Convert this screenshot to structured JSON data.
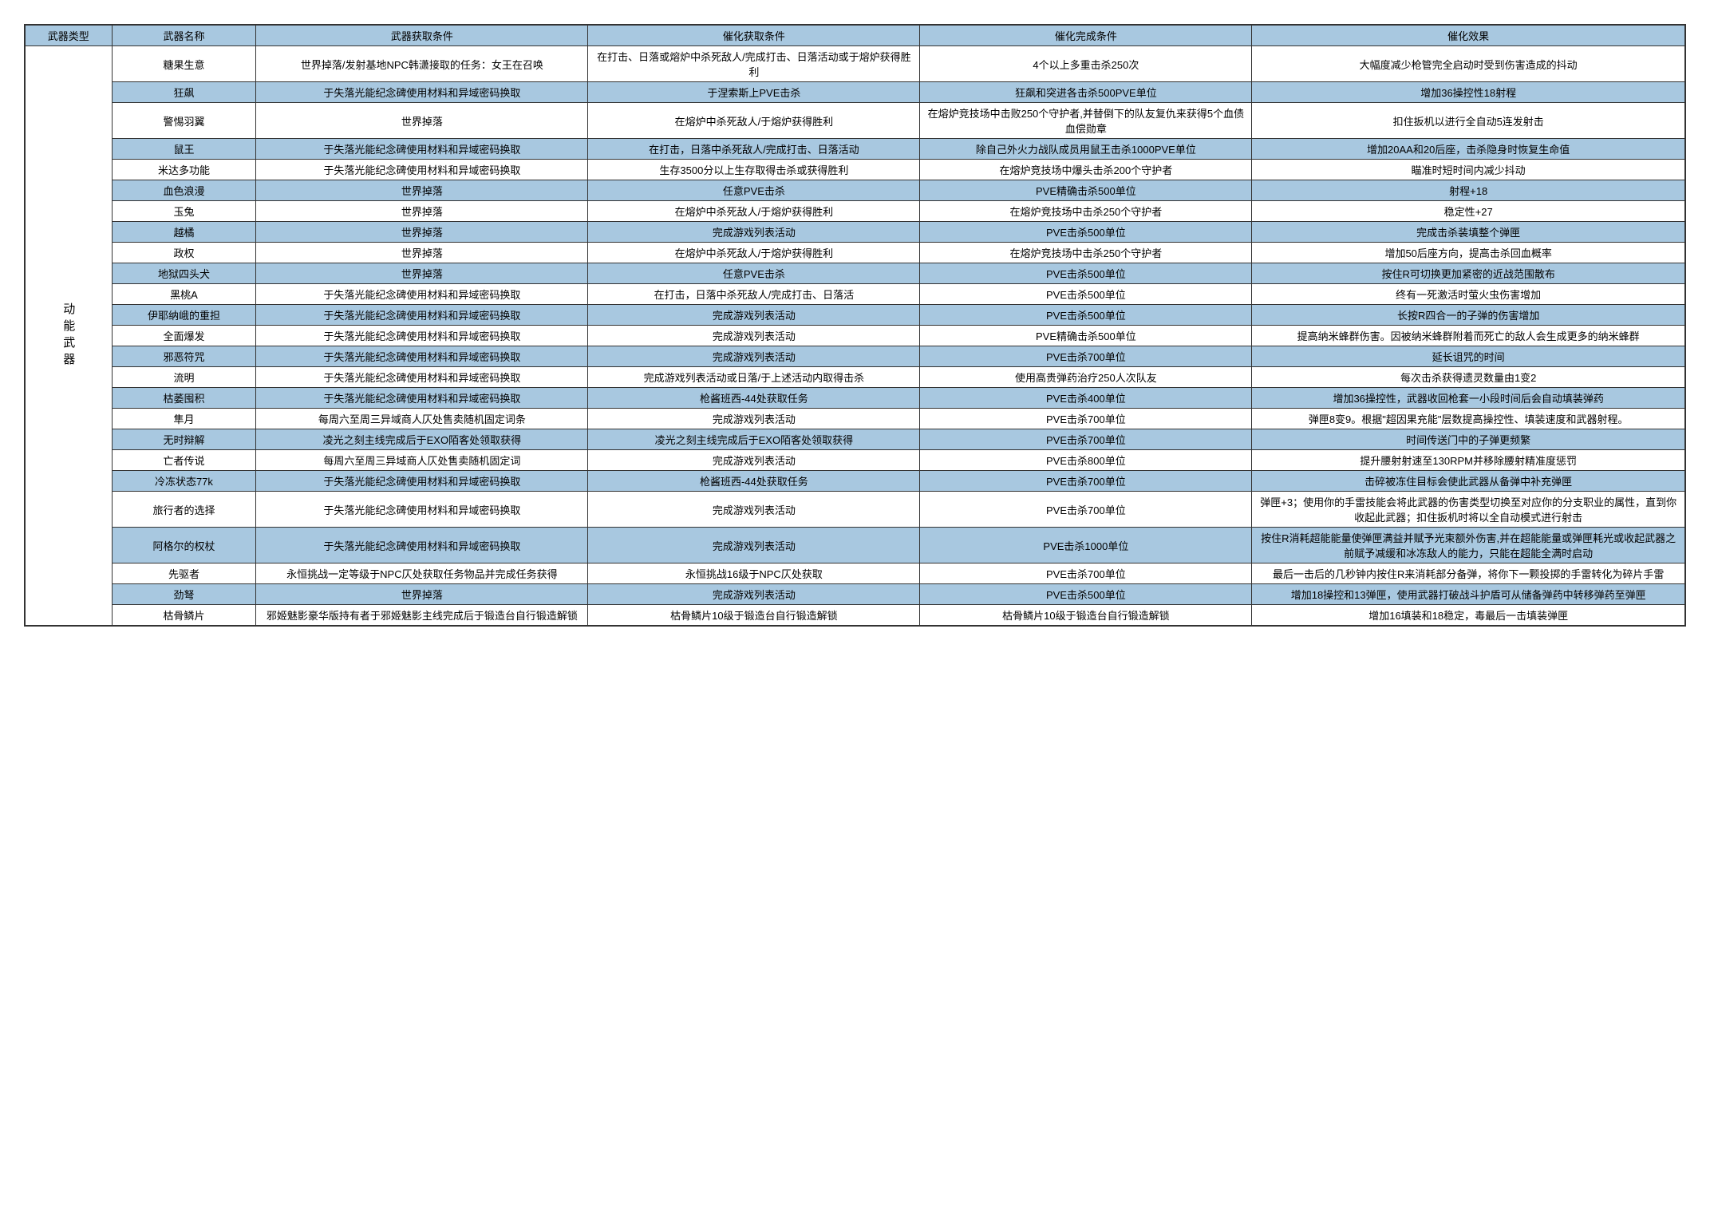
{
  "headers": [
    "武器类型",
    "武器名称",
    "武器获取条件",
    "催化获取条件",
    "催化完成条件",
    "催化效果"
  ],
  "categoryLabel": "动能武器",
  "colors": {
    "header_bg": "#a8c8e0",
    "border": "#333333",
    "text": "#000000",
    "bg": "#ffffff"
  },
  "rows": [
    {
      "hl": false,
      "cells": [
        "糖果生意",
        "世界掉落/发射基地NPC韩潇接取的任务：女王在召唤",
        "在打击、日落或熔炉中杀死敌人/完成打击、日落活动或于熔炉获得胜利",
        "4个以上多重击杀250次",
        "大幅度减少枪管完全启动时受到伤害造成的抖动"
      ]
    },
    {
      "hl": true,
      "cells": [
        "狂飙",
        "于失落光能纪念碑使用材料和异域密码换取",
        "于涅索斯上PVE击杀",
        "狂飙和突进各击杀500PVE单位",
        "增加36操控性18射程"
      ]
    },
    {
      "hl": false,
      "cells": [
        "警惕羽翼",
        "世界掉落",
        "在熔炉中杀死敌人/于熔炉获得胜利",
        "在熔炉竞技场中击败250个守护者,并替倒下的队友复仇来获得5个血债血偿勋章",
        "扣住扳机以进行全自动5连发射击"
      ]
    },
    {
      "hl": true,
      "cells": [
        "鼠王",
        "于失落光能纪念碑使用材料和异域密码换取",
        "在打击，日落中杀死敌人/完成打击、日落活动",
        "除自己外火力战队成员用鼠王击杀1000PVE单位",
        "增加20AA和20后座，击杀隐身时恢复生命值"
      ]
    },
    {
      "hl": false,
      "cells": [
        "米达多功能",
        "于失落光能纪念碑使用材料和异域密码换取",
        "生存3500分以上生存取得击杀或获得胜利",
        "在熔炉竞技场中爆头击杀200个守护者",
        "瞄准时短时间内减少抖动"
      ]
    },
    {
      "hl": true,
      "cells": [
        "血色浪漫",
        "世界掉落",
        "任意PVE击杀",
        "PVE精确击杀500单位",
        "射程+18"
      ]
    },
    {
      "hl": false,
      "cells": [
        "玉兔",
        "世界掉落",
        "在熔炉中杀死敌人/于熔炉获得胜利",
        "在熔炉竞技场中击杀250个守护者",
        "稳定性+27"
      ]
    },
    {
      "hl": true,
      "cells": [
        "越橘",
        "世界掉落",
        "完成游戏列表活动",
        "PVE击杀500单位",
        "完成击杀装填整个弹匣"
      ]
    },
    {
      "hl": false,
      "cells": [
        "政权",
        "世界掉落",
        "在熔炉中杀死敌人/于熔炉获得胜利",
        "在熔炉竞技场中击杀250个守护者",
        "增加50后座方向，提高击杀回血概率"
      ]
    },
    {
      "hl": true,
      "cells": [
        "地狱四头犬",
        "世界掉落",
        "任意PVE击杀",
        "PVE击杀500单位",
        "按住R可切换更加紧密的近战范围散布"
      ]
    },
    {
      "hl": false,
      "cells": [
        "黑桃A",
        "于失落光能纪念碑使用材料和异域密码换取",
        "在打击，日落中杀死敌人/完成打击、日落活",
        "PVE击杀500单位",
        "终有一死激活时萤火虫伤害增加"
      ]
    },
    {
      "hl": true,
      "cells": [
        "伊耶纳峨的重担",
        "于失落光能纪念碑使用材料和异域密码换取",
        "完成游戏列表活动",
        "PVE击杀500单位",
        "长按R四合一的子弹的伤害增加"
      ]
    },
    {
      "hl": false,
      "cells": [
        "全面爆发",
        "于失落光能纪念碑使用材料和异域密码换取",
        "完成游戏列表活动",
        "PVE精确击杀500单位",
        "提高纳米蜂群伤害。因被纳米蜂群附着而死亡的敌人会生成更多的纳米蜂群"
      ]
    },
    {
      "hl": true,
      "cells": [
        "邪恶符咒",
        "于失落光能纪念碑使用材料和异域密码换取",
        "完成游戏列表活动",
        "PVE击杀700单位",
        "延长诅咒的时间"
      ]
    },
    {
      "hl": false,
      "cells": [
        "流明",
        "于失落光能纪念碑使用材料和异域密码换取",
        "完成游戏列表活动或日落/于上述活动内取得击杀",
        "使用高贵弹药治疗250人次队友",
        "每次击杀获得遗灵数量由1变2"
      ]
    },
    {
      "hl": true,
      "cells": [
        "枯萎囤积",
        "于失落光能纪念碑使用材料和异域密码换取",
        "枪酱班西-44处获取任务",
        "PVE击杀400单位",
        "增加36操控性，武器收回枪套一小段时间后会自动填装弹药"
      ]
    },
    {
      "hl": false,
      "cells": [
        "隼月",
        "每周六至周三异域商人仄处售卖随机固定词条",
        "完成游戏列表活动",
        "PVE击杀700单位",
        "弹匣8变9。根据\"超因果充能\"层数提高操控性、填装速度和武器射程。"
      ]
    },
    {
      "hl": true,
      "cells": [
        "无时辩解",
        "凌光之刻主线完成后于EXO陌客处领取获得",
        "凌光之刻主线完成后于EXO陌客处领取获得",
        "PVE击杀700单位",
        "时间传送门中的子弹更频繁"
      ]
    },
    {
      "hl": false,
      "cells": [
        "亡者传说",
        "每周六至周三异域商人仄处售卖随机固定词",
        "完成游戏列表活动",
        "PVE击杀800单位",
        "提升腰射射速至130RPM并移除腰射精准度惩罚"
      ]
    },
    {
      "hl": true,
      "cells": [
        "冷冻状态77k",
        "于失落光能纪念碑使用材料和异域密码换取",
        "枪酱班西-44处获取任务",
        "PVE击杀700单位",
        "击碎被冻住目标会使此武器从备弹中补充弹匣"
      ]
    },
    {
      "hl": false,
      "cells": [
        "旅行者的选择",
        "于失落光能纪念碑使用材料和异域密码换取",
        "完成游戏列表活动",
        "PVE击杀700单位",
        "弹匣+3；使用你的手雷技能会将此武器的伤害类型切换至对应你的分支职业的属性，直到你收起此武器；扣住扳机时将以全自动模式进行射击"
      ]
    },
    {
      "hl": true,
      "cells": [
        "阿格尔的权杖",
        "于失落光能纪念碑使用材料和异域密码换取",
        "完成游戏列表活动",
        "PVE击杀1000单位",
        "按住R消耗超能能量使弹匣满益并赋予光束额外伤害,并在超能能量或弹匣耗光或收起武器之前赋予减缓和冰冻敌人的能力，只能在超能全满时启动"
      ]
    },
    {
      "hl": false,
      "cells": [
        "先驱者",
        "永恒挑战一定等级于NPC仄处获取任务物品并完成任务获得",
        "永恒挑战16级于NPC仄处获取",
        "PVE击杀700单位",
        "最后一击后的几秒钟内按住R来消耗部分备弹，将你下一颗投掷的手雷转化为碎片手雷"
      ]
    },
    {
      "hl": true,
      "cells": [
        "劲弩",
        "世界掉落",
        "完成游戏列表活动",
        "PVE击杀500单位",
        "增加18操控和13弹匣，使用武器打破战斗护盾可从储备弹药中转移弹药至弹匣"
      ]
    },
    {
      "hl": false,
      "cells": [
        "枯骨鳞片",
        "邪姬魅影豪华版持有者于邪姬魅影主线完成后于锻造台自行锻造解锁",
        "枯骨鳞片10级于锻造台自行锻造解锁",
        "枯骨鳞片10级于锻造台自行锻造解锁",
        "增加16填装和18稳定，毒最后一击填装弹匣"
      ]
    }
  ]
}
